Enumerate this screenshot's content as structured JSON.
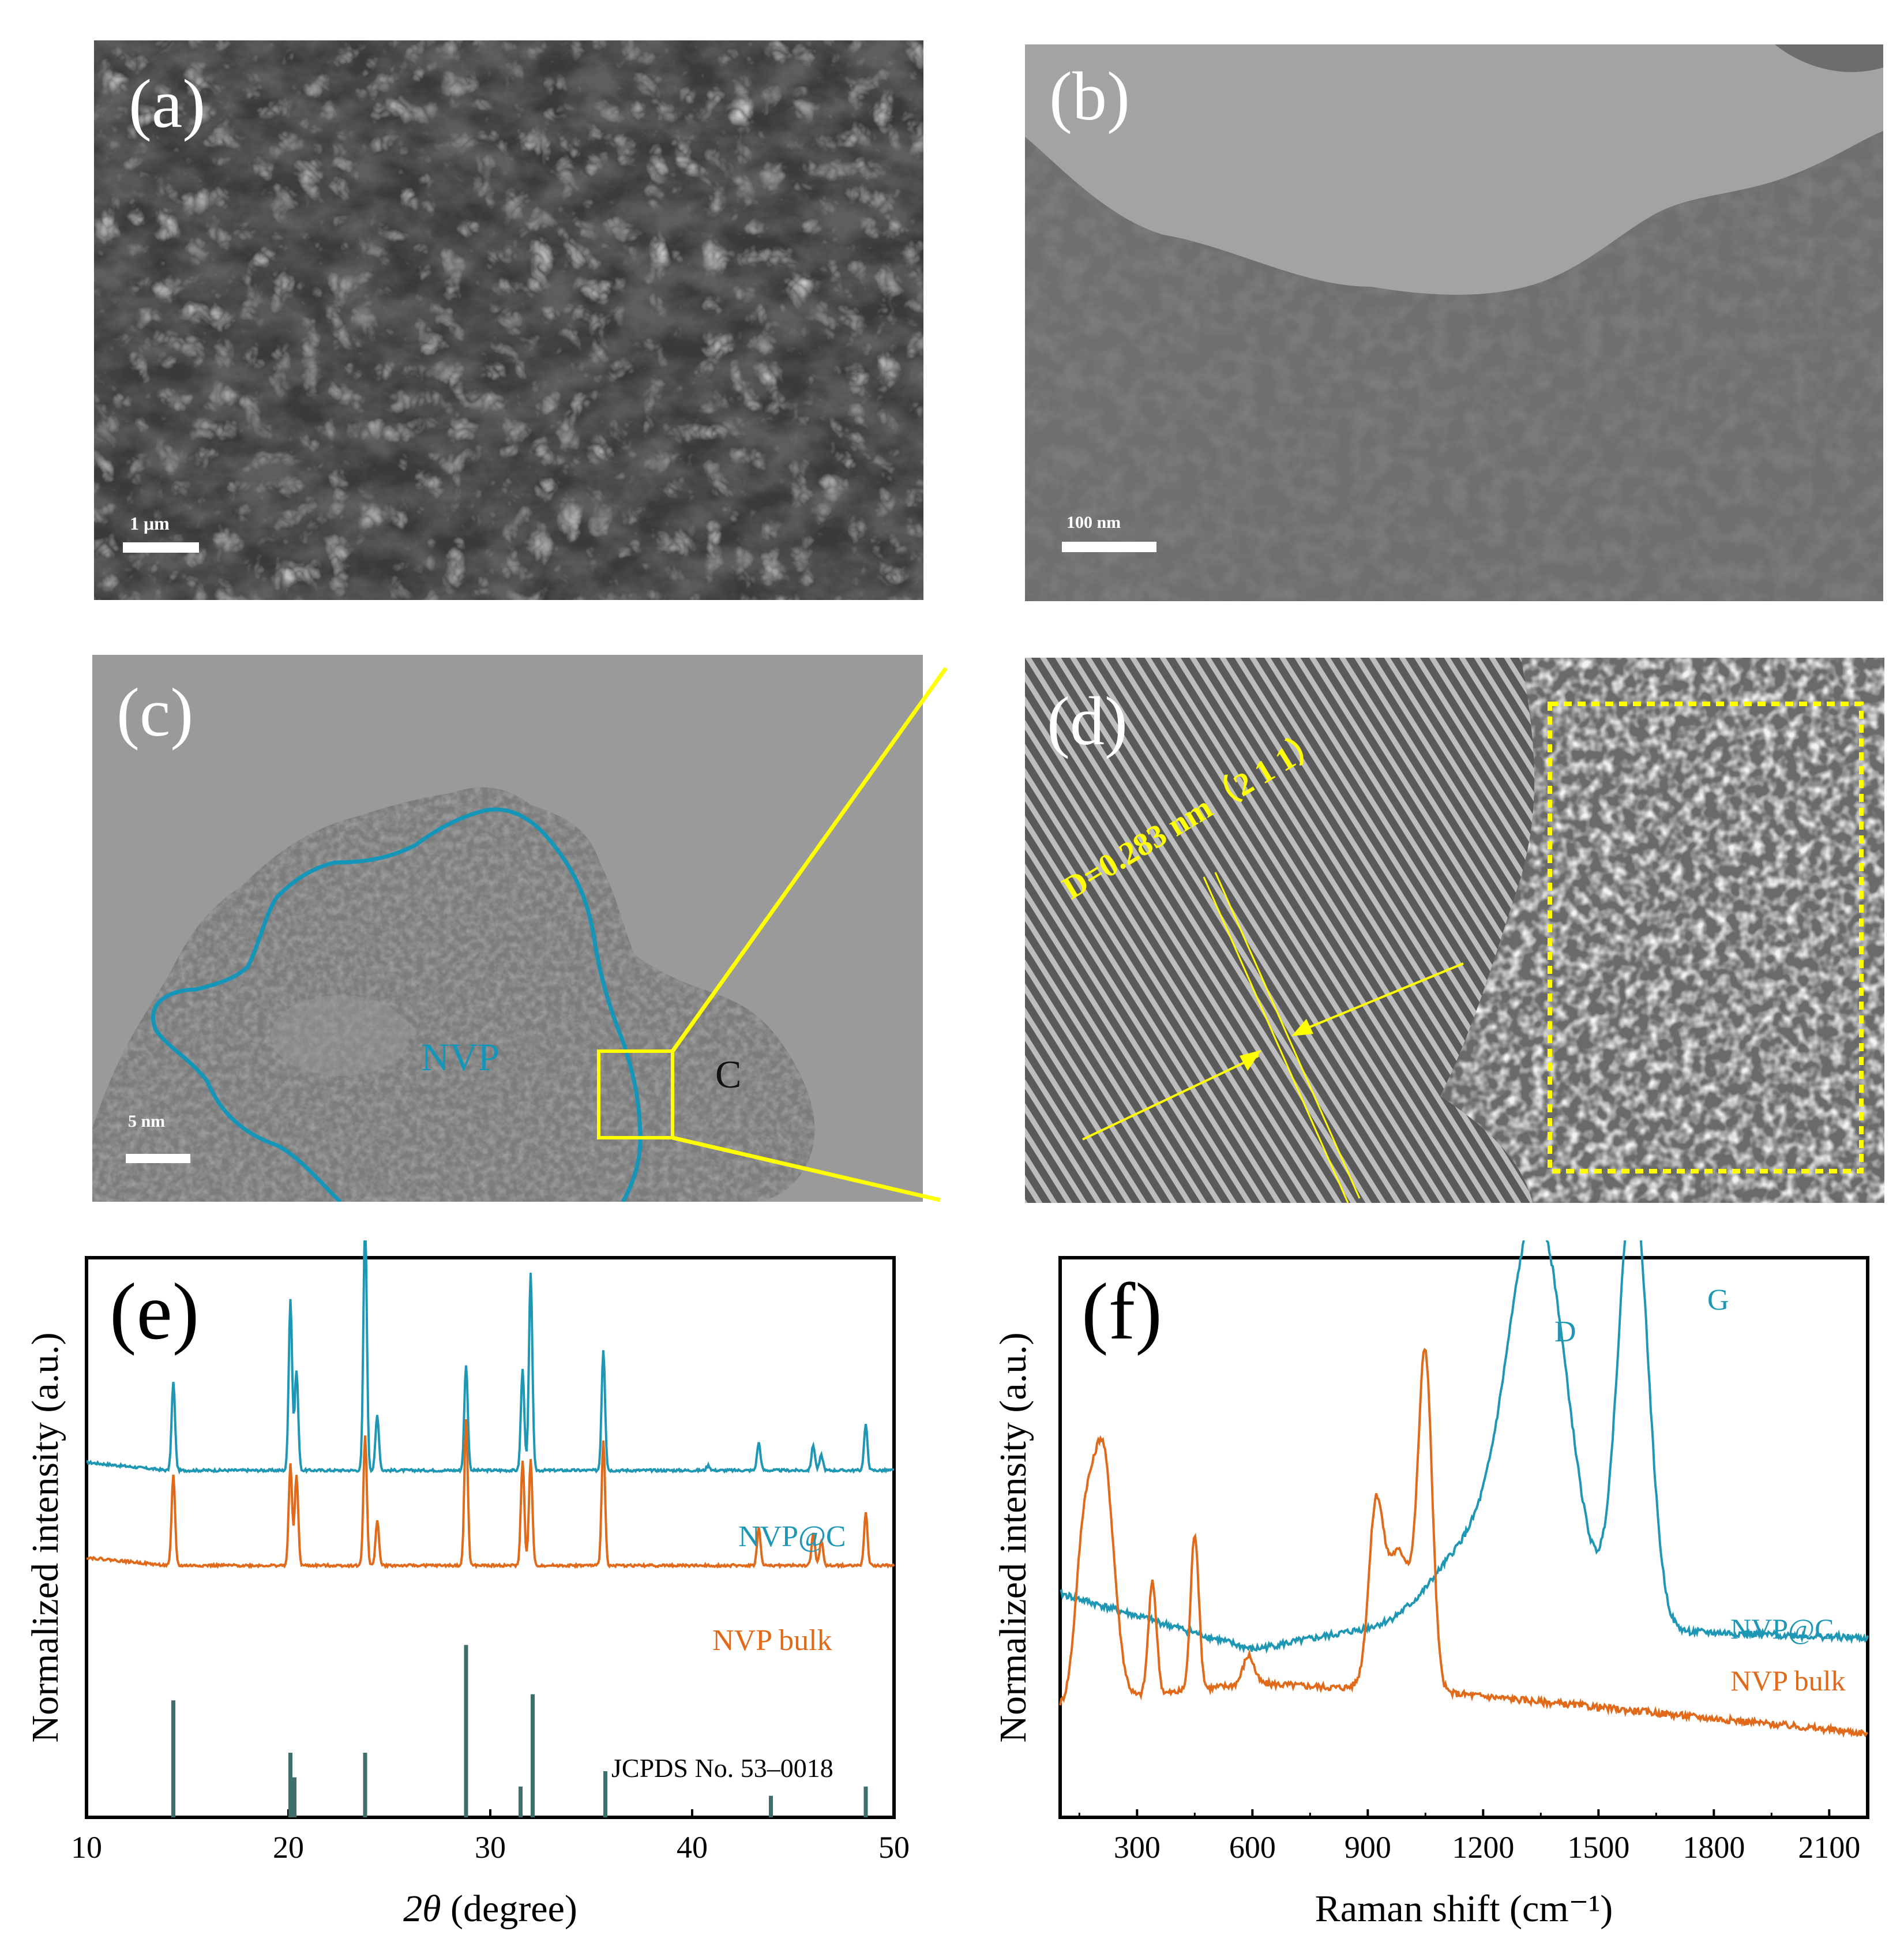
{
  "figure": {
    "panels": [
      {
        "id": "a",
        "label": "(a)",
        "scale_bar": "1 μm"
      },
      {
        "id": "b",
        "label": "(b)",
        "scale_bar": "100 nm"
      },
      {
        "id": "c",
        "label": "(c)",
        "scale_bar": "5 nm",
        "region_nvp": "NVP",
        "region_c": "C"
      },
      {
        "id": "d",
        "label": "(d)",
        "d_spacing": "D=0.283 nm（2 1 1）"
      }
    ]
  },
  "chart_data": [
    {
      "panel": "(e)",
      "type": "line",
      "xlabel": "2θ (degree)",
      "ylabel": "Normalized intensity (a.u.)",
      "xlim": [
        10,
        50
      ],
      "xticks": [
        10,
        20,
        30,
        40,
        50
      ],
      "series": [
        {
          "name": "NVP@C",
          "color": "#1e97b5",
          "baseline": 0.62,
          "peaks": [
            [
              14.3,
              0.35
            ],
            [
              20.1,
              0.68
            ],
            [
              20.4,
              0.4
            ],
            [
              23.8,
              1.0
            ],
            [
              24.4,
              0.22
            ],
            [
              28.8,
              0.42
            ],
            [
              31.6,
              0.4
            ],
            [
              32.0,
              0.78
            ],
            [
              35.6,
              0.48
            ],
            [
              40.8,
              0.02
            ],
            [
              43.3,
              0.11
            ],
            [
              46.0,
              0.1
            ],
            [
              46.4,
              0.06
            ],
            [
              48.6,
              0.18
            ]
          ]
        },
        {
          "name": "NVP bulk",
          "color": "#e06a1a",
          "baseline": 0.45,
          "peaks": [
            [
              14.3,
              0.36
            ],
            [
              20.1,
              0.4
            ],
            [
              20.4,
              0.36
            ],
            [
              23.8,
              0.52
            ],
            [
              24.4,
              0.18
            ],
            [
              28.8,
              0.58
            ],
            [
              31.6,
              0.42
            ],
            [
              32.0,
              0.42
            ],
            [
              35.6,
              0.5
            ],
            [
              43.3,
              0.15
            ],
            [
              46.0,
              0.13
            ],
            [
              46.4,
              0.1
            ],
            [
              48.6,
              0.21
            ]
          ]
        }
      ],
      "reference": {
        "name": "JCPDS No. 53–0018",
        "color": "#3f6f6a",
        "lines": [
          [
            14.3,
            0.38
          ],
          [
            20.1,
            0.21
          ],
          [
            20.3,
            0.13
          ],
          [
            23.8,
            0.21
          ],
          [
            28.8,
            0.56
          ],
          [
            31.5,
            0.1
          ],
          [
            32.1,
            0.4
          ],
          [
            35.7,
            0.15
          ],
          [
            43.9,
            0.07
          ],
          [
            48.6,
            0.1
          ]
        ]
      }
    },
    {
      "panel": "(f)",
      "type": "line",
      "xlabel": "Raman shift (cm⁻¹)",
      "ylabel": "Normalized intensity (a.u.)",
      "xlim": [
        100,
        2200
      ],
      "xticks": [
        300,
        600,
        900,
        1200,
        1500,
        1800,
        2100
      ],
      "annotations": [
        "D",
        "G"
      ],
      "series": [
        {
          "name": "NVP@C",
          "color": "#1e97b5",
          "baseline": [
            [
              100,
              0.4
            ],
            [
              600,
              0.3
            ],
            [
              1000,
              0.35
            ],
            [
              2200,
              0.32
            ]
          ],
          "peaks": [
            [
              1340,
              0.73,
              110
            ],
            [
              1590,
              0.8,
              55
            ],
            [
              1150,
              0.12,
              120
            ]
          ]
        },
        {
          "name": "NVP bulk",
          "color": "#e06a1a",
          "baseline": [
            [
              100,
              0.2
            ],
            [
              600,
              0.24
            ],
            [
              1150,
              0.22
            ],
            [
              2200,
              0.15
            ]
          ],
          "peaks": [
            [
              210,
              0.45,
              40
            ],
            [
              160,
              0.25,
              30
            ],
            [
              340,
              0.2,
              15
            ],
            [
              450,
              0.28,
              15
            ],
            [
              590,
              0.05,
              20
            ],
            [
              920,
              0.25,
              25
            ],
            [
              1050,
              0.55,
              25
            ],
            [
              980,
              0.25,
              60
            ]
          ]
        }
      ]
    }
  ]
}
